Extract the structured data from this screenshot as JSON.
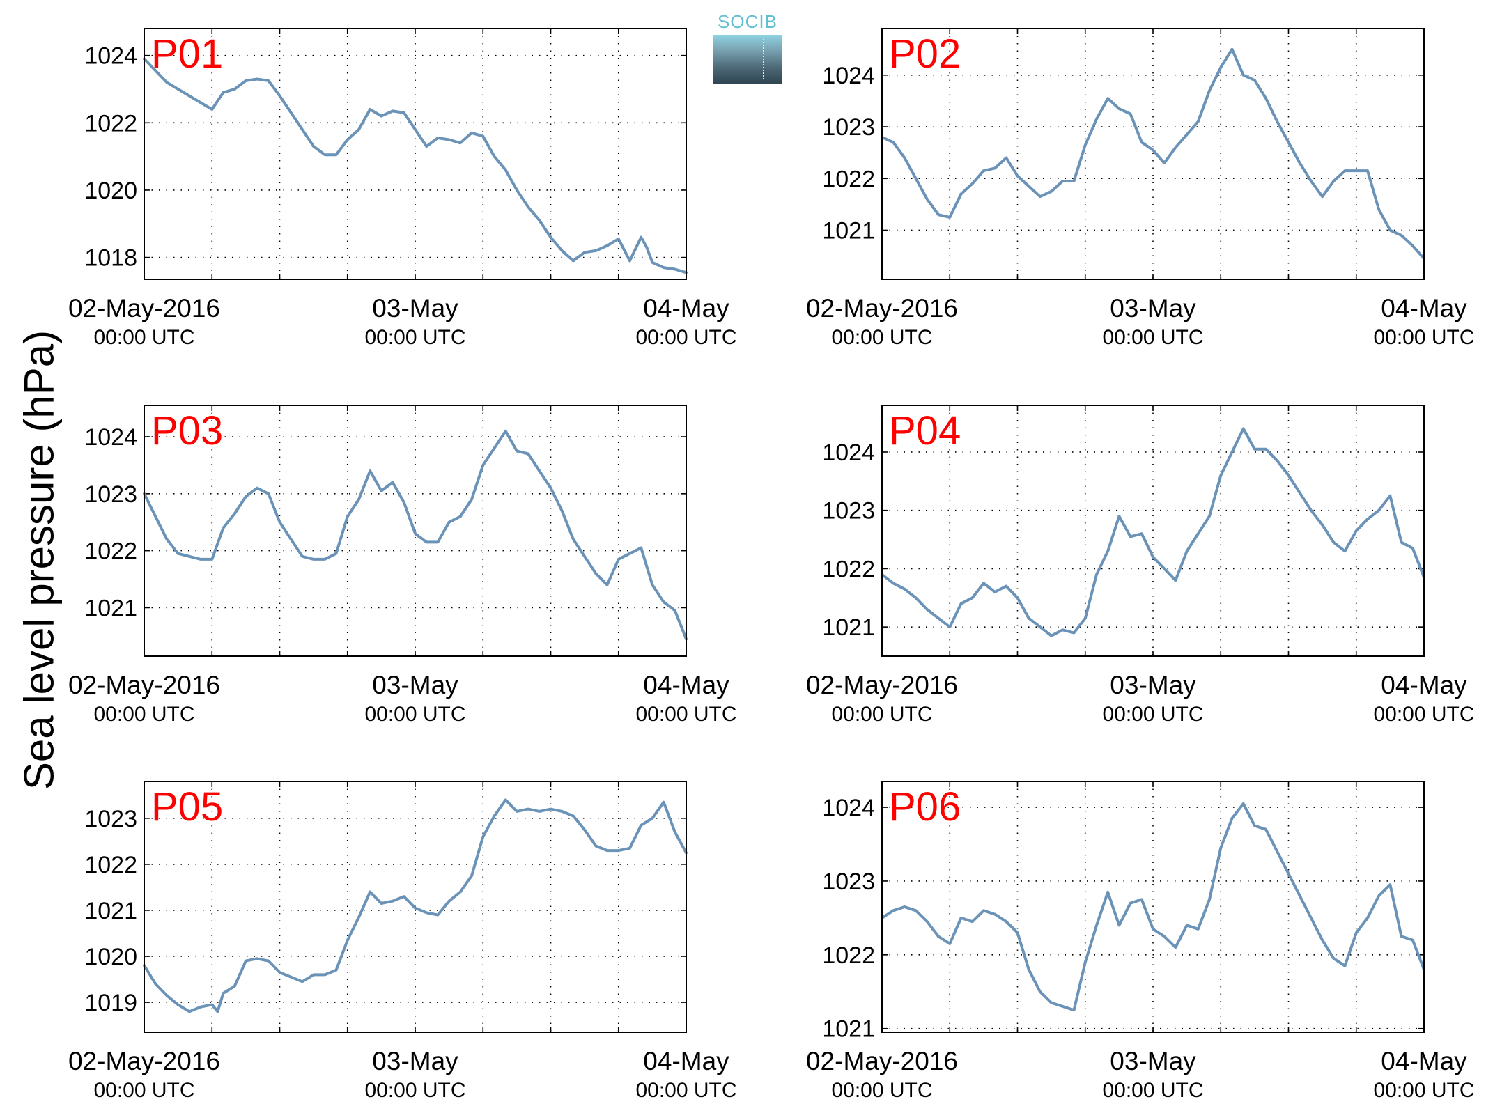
{
  "figure": {
    "ylabel": "Sea level pressure (hPa)",
    "logo_text": "SOCIB",
    "colors": {
      "line": "#6a93b7",
      "panel_title": "#ff0000",
      "axis": "#000000",
      "grid": "#000000"
    }
  },
  "chart_data": [
    {
      "type": "line",
      "title": "P01",
      "x_tick_labels": [
        [
          "02-May-2016",
          "00:00 UTC"
        ],
        [
          "03-May",
          "00:00 UTC"
        ],
        [
          "04-May",
          "00:00 UTC"
        ]
      ],
      "x_range_hours": [
        0,
        48
      ],
      "ylim": [
        1017.35,
        1024.8
      ],
      "yticks": [
        1018,
        1020,
        1022,
        1024
      ],
      "grid": true,
      "series": [
        {
          "x": [
            0,
            2,
            4,
            6,
            7,
            8,
            9,
            10,
            11,
            12,
            13,
            14,
            15,
            16,
            17,
            18,
            19,
            20,
            21,
            22,
            23,
            24,
            25,
            26,
            27,
            28,
            29,
            30,
            31,
            32,
            33,
            34,
            35,
            36,
            37,
            38,
            39,
            40,
            41,
            42,
            43,
            44,
            44.5,
            45,
            46,
            47,
            48
          ],
          "y": [
            1023.9,
            1023.2,
            1022.8,
            1022.4,
            1022.9,
            1023.0,
            1023.25,
            1023.3,
            1023.25,
            1022.8,
            1022.3,
            1021.8,
            1021.3,
            1021.05,
            1021.05,
            1021.5,
            1021.8,
            1022.4,
            1022.2,
            1022.35,
            1022.3,
            1021.8,
            1021.3,
            1021.55,
            1021.5,
            1021.4,
            1021.7,
            1021.6,
            1021.0,
            1020.6,
            1020.0,
            1019.5,
            1019.1,
            1018.6,
            1018.2,
            1017.9,
            1018.15,
            1018.2,
            1018.35,
            1018.55,
            1017.9,
            1018.6,
            1018.3,
            1017.85,
            1017.7,
            1017.65,
            1017.55
          ]
        }
      ]
    },
    {
      "type": "line",
      "title": "P02",
      "x_tick_labels": [
        [
          "02-May-2016",
          "00:00 UTC"
        ],
        [
          "03-May",
          "00:00 UTC"
        ],
        [
          "04-May",
          "00:00 UTC"
        ]
      ],
      "x_range_hours": [
        0,
        48
      ],
      "ylim": [
        1020.05,
        1024.9
      ],
      "yticks": [
        1021,
        1022,
        1023,
        1024
      ],
      "grid": true,
      "series": [
        {
          "x": [
            0,
            1,
            2,
            3,
            4,
            5,
            6,
            7,
            8,
            9,
            10,
            11,
            12,
            13,
            14,
            15,
            16,
            17,
            18,
            19,
            20,
            21,
            22,
            23,
            24,
            25,
            26,
            27,
            28,
            29,
            30,
            31,
            32,
            33,
            34,
            35,
            36,
            37,
            38,
            39,
            40,
            41,
            42,
            43,
            44,
            45,
            46,
            47,
            48
          ],
          "y": [
            1022.8,
            1022.7,
            1022.4,
            1022.0,
            1021.6,
            1021.3,
            1021.25,
            1021.7,
            1021.9,
            1022.15,
            1022.2,
            1022.4,
            1022.05,
            1021.85,
            1021.65,
            1021.75,
            1021.95,
            1021.95,
            1022.65,
            1023.15,
            1023.55,
            1023.35,
            1023.25,
            1022.7,
            1022.55,
            1022.3,
            1022.6,
            1022.85,
            1023.1,
            1023.7,
            1024.15,
            1024.5,
            1024.0,
            1023.9,
            1023.55,
            1023.1,
            1022.7,
            1022.3,
            1021.95,
            1021.65,
            1021.95,
            1022.15,
            1022.15,
            1022.15,
            1021.4,
            1021.0,
            1020.9,
            1020.7,
            1020.45
          ]
        }
      ]
    },
    {
      "type": "line",
      "title": "P03",
      "x_tick_labels": [
        [
          "02-May-2016",
          "00:00 UTC"
        ],
        [
          "03-May",
          "00:00 UTC"
        ],
        [
          "04-May",
          "00:00 UTC"
        ]
      ],
      "x_range_hours": [
        0,
        48
      ],
      "ylim": [
        1020.15,
        1024.55
      ],
      "yticks": [
        1021,
        1022,
        1023,
        1024
      ],
      "grid": true,
      "series": [
        {
          "x": [
            0,
            1,
            2,
            3,
            4,
            5,
            6,
            7,
            8,
            9,
            10,
            11,
            12,
            13,
            14,
            15,
            16,
            17,
            18,
            19,
            20,
            21,
            22,
            23,
            24,
            25,
            26,
            27,
            28,
            29,
            30,
            31,
            32,
            33,
            34,
            35,
            36,
            37,
            38,
            39,
            40,
            41,
            42,
            43,
            44,
            45,
            46,
            47,
            48
          ],
          "y": [
            1023.0,
            1022.6,
            1022.2,
            1021.95,
            1021.9,
            1021.85,
            1021.85,
            1022.4,
            1022.65,
            1022.95,
            1023.1,
            1023.0,
            1022.5,
            1022.2,
            1021.9,
            1021.85,
            1021.85,
            1021.95,
            1022.6,
            1022.9,
            1023.4,
            1023.05,
            1023.2,
            1022.85,
            1022.3,
            1022.15,
            1022.15,
            1022.5,
            1022.6,
            1022.9,
            1023.5,
            1023.8,
            1024.1,
            1023.75,
            1023.7,
            1023.4,
            1023.1,
            1022.7,
            1022.2,
            1021.9,
            1021.6,
            1021.4,
            1021.85,
            1021.95,
            1022.05,
            1021.4,
            1021.1,
            1020.95,
            1020.45
          ]
        }
      ]
    },
    {
      "type": "line",
      "title": "P04",
      "x_tick_labels": [
        [
          "02-May-2016",
          "00:00 UTC"
        ],
        [
          "03-May",
          "00:00 UTC"
        ],
        [
          "04-May",
          "00:00 UTC"
        ]
      ],
      "x_range_hours": [
        0,
        48
      ],
      "ylim": [
        1020.5,
        1024.8
      ],
      "yticks": [
        1021,
        1022,
        1023,
        1024
      ],
      "grid": true,
      "series": [
        {
          "x": [
            0,
            1,
            2,
            3,
            4,
            5,
            6,
            7,
            8,
            9,
            10,
            11,
            12,
            13,
            14,
            15,
            16,
            17,
            18,
            19,
            20,
            21,
            22,
            23,
            24,
            25,
            26,
            27,
            28,
            29,
            30,
            31,
            32,
            33,
            34,
            35,
            36,
            37,
            38,
            39,
            40,
            41,
            42,
            43,
            44,
            45,
            46,
            47,
            48
          ],
          "y": [
            1021.9,
            1021.75,
            1021.65,
            1021.5,
            1021.3,
            1021.15,
            1021.0,
            1021.4,
            1021.5,
            1021.75,
            1021.6,
            1021.7,
            1021.5,
            1021.15,
            1021.0,
            1020.85,
            1020.95,
            1020.9,
            1021.15,
            1021.9,
            1022.3,
            1022.9,
            1022.55,
            1022.6,
            1022.2,
            1022.0,
            1021.8,
            1022.3,
            1022.6,
            1022.9,
            1023.6,
            1024.0,
            1024.4,
            1024.05,
            1024.05,
            1023.85,
            1023.6,
            1023.3,
            1023.0,
            1022.75,
            1022.45,
            1022.3,
            1022.65,
            1022.85,
            1023.0,
            1023.25,
            1022.45,
            1022.35,
            1021.85
          ]
        }
      ]
    },
    {
      "type": "line",
      "title": "P05",
      "x_tick_labels": [
        [
          "02-May-2016",
          "00:00 UTC"
        ],
        [
          "03-May",
          "00:00 UTC"
        ],
        [
          "04-May",
          "00:00 UTC"
        ]
      ],
      "x_range_hours": [
        0,
        48
      ],
      "ylim": [
        1018.35,
        1023.8
      ],
      "yticks": [
        1019,
        1020,
        1021,
        1022,
        1023
      ],
      "grid": true,
      "series": [
        {
          "x": [
            0,
            1,
            2,
            3,
            4,
            5,
            6,
            6.5,
            7,
            8,
            9,
            10,
            11,
            12,
            13,
            14,
            15,
            16,
            17,
            18,
            19,
            20,
            21,
            22,
            23,
            24,
            25,
            26,
            27,
            28,
            29,
            30,
            31,
            32,
            33,
            34,
            35,
            36,
            37,
            38,
            39,
            40,
            41,
            42,
            43,
            44,
            45,
            46,
            47,
            48
          ],
          "y": [
            1019.8,
            1019.4,
            1019.15,
            1018.95,
            1018.8,
            1018.9,
            1018.95,
            1018.8,
            1019.2,
            1019.35,
            1019.9,
            1019.95,
            1019.9,
            1019.65,
            1019.55,
            1019.45,
            1019.6,
            1019.6,
            1019.7,
            1020.35,
            1020.85,
            1021.4,
            1021.15,
            1021.2,
            1021.3,
            1021.05,
            1020.95,
            1020.9,
            1021.2,
            1021.4,
            1021.75,
            1022.6,
            1023.05,
            1023.4,
            1023.15,
            1023.2,
            1023.15,
            1023.2,
            1023.15,
            1023.05,
            1022.75,
            1022.4,
            1022.3,
            1022.3,
            1022.35,
            1022.85,
            1023.0,
            1023.35,
            1022.7,
            1022.25
          ]
        }
      ]
    },
    {
      "type": "line",
      "title": "P06",
      "x_tick_labels": [
        [
          "02-May-2016",
          "00:00 UTC"
        ],
        [
          "03-May",
          "00:00 UTC"
        ],
        [
          "04-May",
          "00:00 UTC"
        ]
      ],
      "x_range_hours": [
        0,
        48
      ],
      "ylim": [
        1020.95,
        1024.35
      ],
      "yticks": [
        1021,
        1022,
        1023,
        1024
      ],
      "grid": true,
      "series": [
        {
          "x": [
            0,
            1,
            2,
            3,
            4,
            5,
            6,
            7,
            8,
            9,
            10,
            11,
            12,
            13,
            14,
            15,
            16,
            17,
            18,
            19,
            20,
            21,
            22,
            23,
            24,
            25,
            26,
            27,
            28,
            29,
            30,
            31,
            32,
            33,
            34,
            35,
            36,
            37,
            38,
            39,
            40,
            41,
            42,
            43,
            44,
            45,
            46,
            47,
            48
          ],
          "y": [
            1022.5,
            1022.6,
            1022.65,
            1022.6,
            1022.45,
            1022.25,
            1022.15,
            1022.5,
            1022.45,
            1022.6,
            1022.55,
            1022.45,
            1022.3,
            1021.8,
            1021.5,
            1021.35,
            1021.3,
            1021.25,
            1021.9,
            1022.4,
            1022.85,
            1022.4,
            1022.7,
            1022.75,
            1022.35,
            1022.25,
            1022.1,
            1022.4,
            1022.35,
            1022.75,
            1023.45,
            1023.85,
            1024.05,
            1023.75,
            1023.7,
            1023.4,
            1023.1,
            1022.8,
            1022.5,
            1022.2,
            1021.95,
            1021.85,
            1022.3,
            1022.5,
            1022.8,
            1022.95,
            1022.25,
            1022.2,
            1021.8
          ]
        }
      ]
    }
  ]
}
